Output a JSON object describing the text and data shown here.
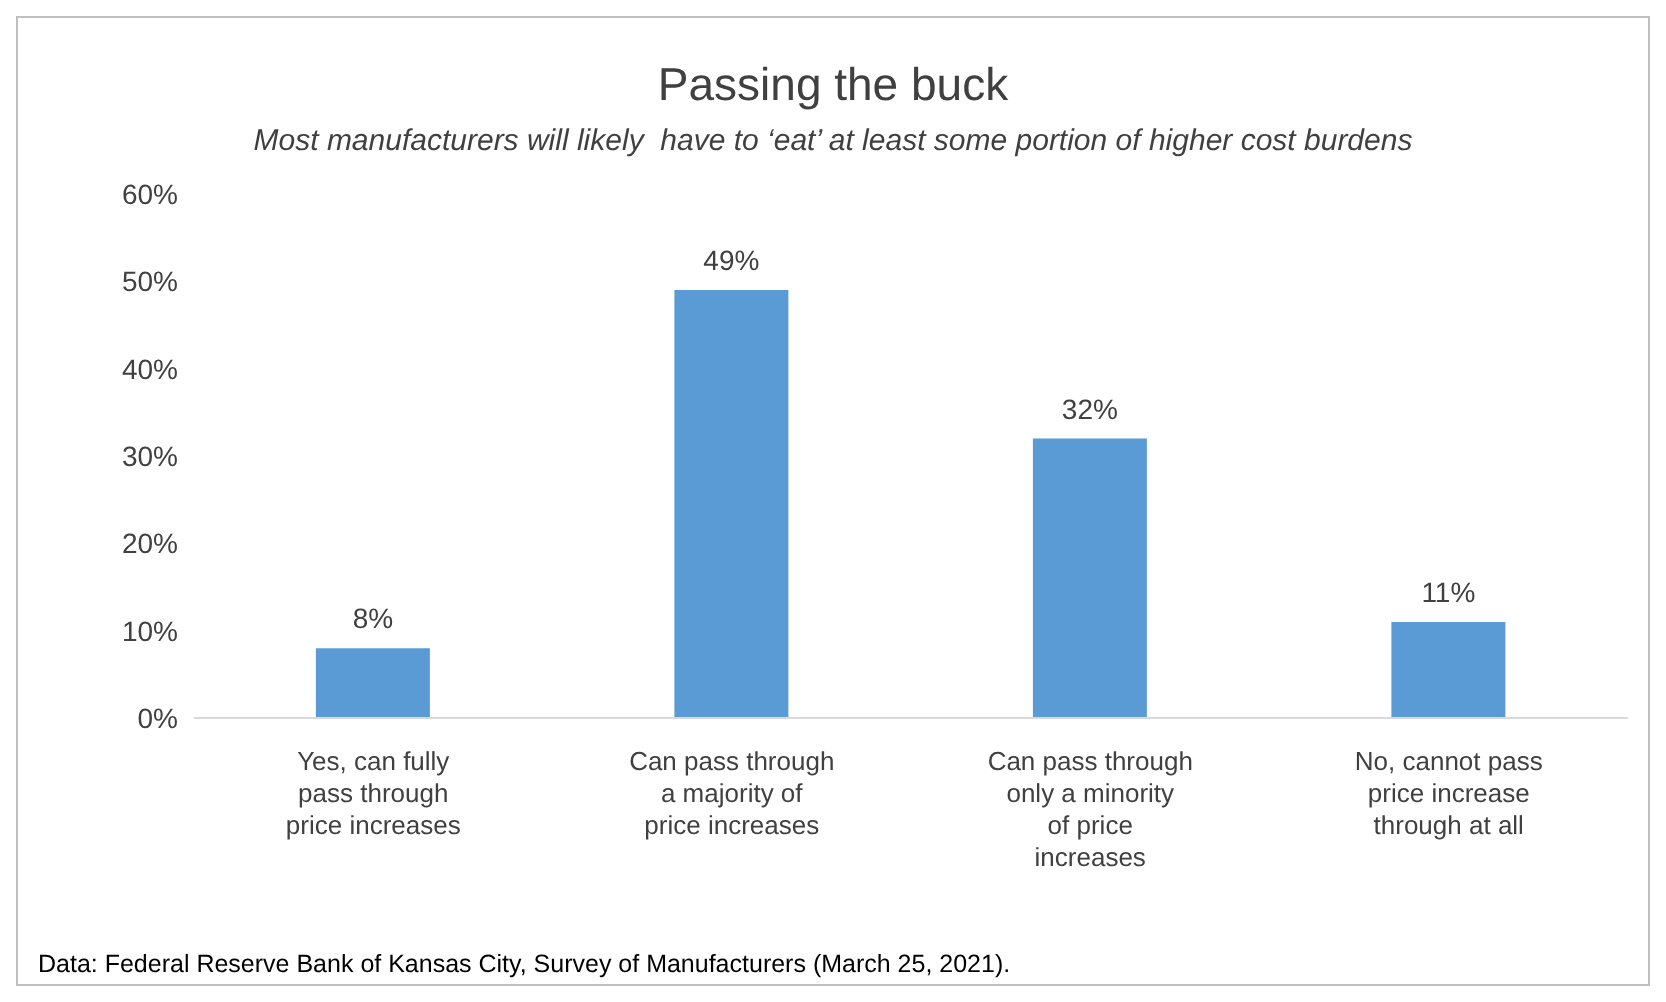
{
  "chart_data": {
    "type": "bar",
    "title": "Passing the buck",
    "subtitle": "Most manufacturers will likely  have to ‘eat’ at least some portion of higher cost burdens",
    "categories": [
      "Yes, can fully pass through price increases",
      "Can pass through a majority of price increases",
      "Can pass through only a minority of price increases",
      "No, cannot pass price increase through at all"
    ],
    "values": [
      8,
      49,
      32,
      11
    ],
    "value_labels": [
      "8%",
      "49%",
      "32%",
      "11%"
    ],
    "color": "#5b9bd5",
    "ylim": [
      0,
      60
    ],
    "yticks": [
      {
        "value": 0,
        "label": "0%"
      },
      {
        "value": 10,
        "label": "10%"
      },
      {
        "value": 20,
        "label": "20%"
      },
      {
        "value": 30,
        "label": "30%"
      },
      {
        "value": 40,
        "label": "40%"
      },
      {
        "value": 50,
        "label": "50%"
      },
      {
        "value": 60,
        "label": "60%"
      }
    ],
    "annotations": [
      "Data: Federal Reserve Bank of Kansas City, Survey of Manufacturers (March 25, 2021)."
    ]
  }
}
